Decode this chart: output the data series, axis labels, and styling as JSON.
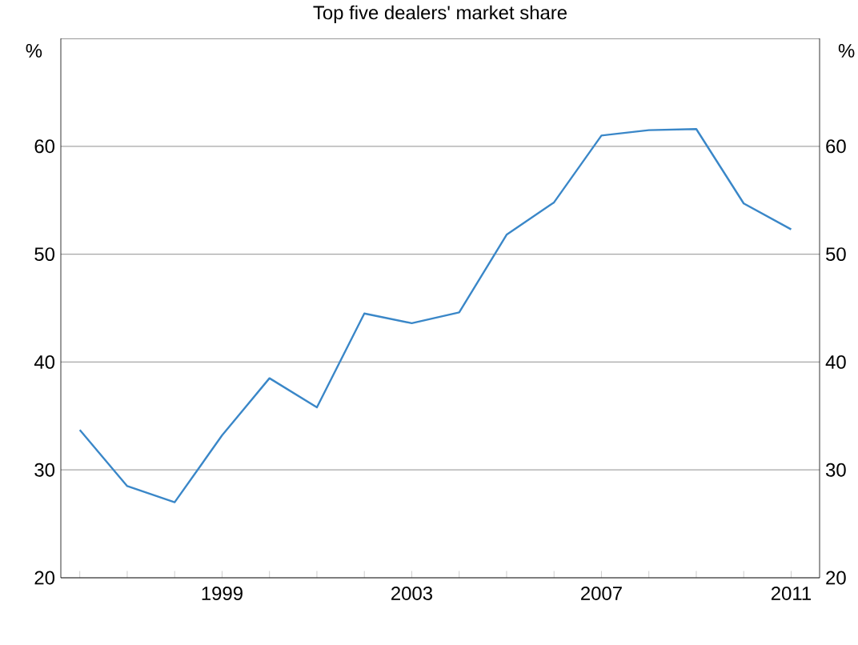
{
  "chart_data": {
    "type": "line",
    "title": "Top five dealers' market share",
    "ylabel": "%",
    "y2label": "%",
    "x": [
      1996,
      1997,
      1998,
      1999,
      2000,
      2001,
      2002,
      2003,
      2004,
      2005,
      2006,
      2007,
      2008,
      2009,
      2010,
      2011
    ],
    "series": [
      {
        "color": "#3a87c8",
        "values": [
          33.7,
          28.5,
          27.0,
          33.2,
          38.5,
          35.8,
          44.5,
          43.6,
          44.6,
          51.8,
          54.8,
          61.0,
          61.5,
          61.6,
          54.7,
          52.3
        ]
      }
    ],
    "xlim": [
      1995.6,
      2011.6
    ],
    "xticks": [
      {
        "value": 1996,
        "label": null
      },
      {
        "value": 1997,
        "label": null
      },
      {
        "value": 1998,
        "label": null
      },
      {
        "value": 1999,
        "label": "1999"
      },
      {
        "value": 2000,
        "label": null
      },
      {
        "value": 2001,
        "label": null
      },
      {
        "value": 2002,
        "label": null
      },
      {
        "value": 2003,
        "label": "2003"
      },
      {
        "value": 2004,
        "label": null
      },
      {
        "value": 2005,
        "label": null
      },
      {
        "value": 2006,
        "label": null
      },
      {
        "value": 2007,
        "label": "2007"
      },
      {
        "value": 2008,
        "label": null
      },
      {
        "value": 2009,
        "label": null
      },
      {
        "value": 2010,
        "label": null
      },
      {
        "value": 2011,
        "label": "2011"
      }
    ],
    "ylim": [
      20,
      70
    ],
    "yticks": [
      20,
      30,
      40,
      50,
      60
    ],
    "y2lim": [
      20,
      70
    ],
    "y2ticks": [
      20,
      30,
      40,
      50,
      60
    ],
    "grid": "y",
    "marker": "none",
    "line_style": "solid"
  }
}
